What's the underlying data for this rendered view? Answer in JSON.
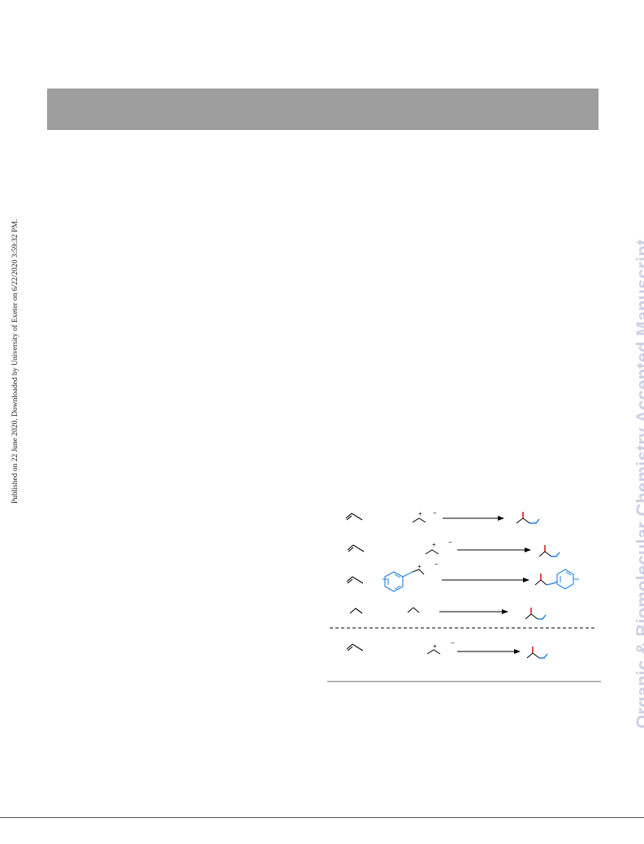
{
  "sidebar": {
    "publication_note": "Published on 22 June 2020. Downloaded by University of Exeter on 6/22/2020 3:59:32 PM."
  },
  "watermark": {
    "text": "Organic & Biomolecular Chemistry Accepted Manuscript",
    "color": "#cdd0e2"
  },
  "header": {
    "band_color": "#9e9e9e"
  },
  "scheme": {
    "charge_plus": "+",
    "charge_minus": "−",
    "colors": {
      "red": "#e0191e",
      "blue": "#1c7fe0",
      "black": "#000000"
    }
  }
}
